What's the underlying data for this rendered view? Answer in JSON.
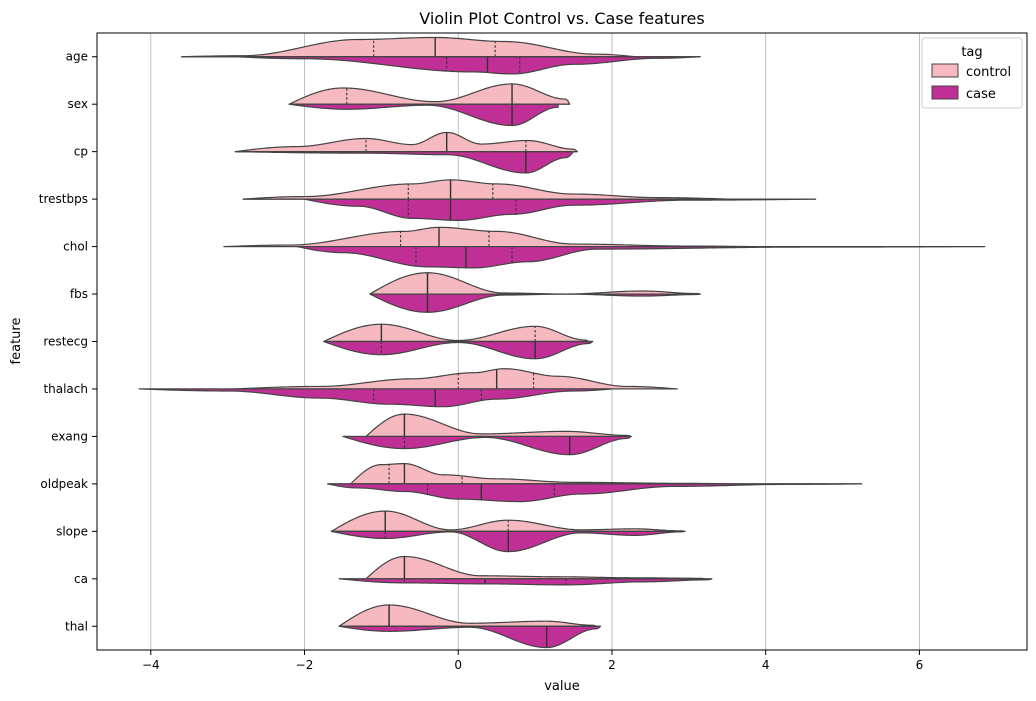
{
  "chart_data": {
    "type": "violin",
    "orientation": "horizontal",
    "split": true,
    "title": "Violin Plot Control vs. Case features",
    "xlabel": "value",
    "ylabel": "feature",
    "xlim": [
      -4.7,
      7.4
    ],
    "xticks": [
      -4,
      -2,
      0,
      2,
      4,
      6
    ],
    "xtick_labels": [
      "−4",
      "−2",
      "0",
      "2",
      "4",
      "6"
    ],
    "grid": "vertical",
    "legend": {
      "title": "tag",
      "placement": "top-right",
      "entries": [
        {
          "label": "control",
          "color": "#f5b9bf"
        },
        {
          "label": "case",
          "color": "#c02f95"
        }
      ]
    },
    "features": [
      {
        "name": "age",
        "control": {
          "range": [
            -3.6,
            2.3
          ],
          "quartiles": [
            -1.1,
            -0.3,
            0.48
          ],
          "peaks": [
            [
              -2.8,
              0.02
            ],
            [
              -1.3,
              0.34
            ],
            [
              -0.3,
              0.38
            ],
            [
              0.6,
              0.3
            ],
            [
              1.8,
              0.05
            ]
          ]
        },
        "case": {
          "range": [
            -2.9,
            3.15
          ],
          "quartiles": [
            -0.15,
            0.38,
            0.8
          ],
          "peaks": [
            [
              -2.0,
              0.04
            ],
            [
              0.2,
              0.3
            ],
            [
              0.7,
              0.34
            ],
            [
              1.5,
              0.15
            ],
            [
              2.6,
              0.03
            ]
          ]
        }
      },
      {
        "name": "sex",
        "control": {
          "range": [
            -2.2,
            1.45
          ],
          "quartiles": [
            -1.45,
            0.7,
            0.7
          ],
          "peaks": [
            [
              -1.5,
              0.32
            ],
            [
              -0.3,
              0.05
            ],
            [
              0.7,
              0.4
            ],
            [
              1.4,
              0.1
            ]
          ]
        },
        "case": {
          "range": [
            -2.2,
            1.3
          ],
          "quartiles": [
            0.7,
            0.7,
            0.7
          ],
          "peaks": [
            [
              -1.45,
              0.1
            ],
            [
              -0.4,
              0.02
            ],
            [
              0.7,
              0.42
            ],
            [
              1.3,
              0.06
            ]
          ]
        }
      },
      {
        "name": "cp",
        "control": {
          "range": [
            -2.9,
            1.55
          ],
          "quartiles": [
            -1.2,
            -0.15,
            0.88
          ],
          "peaks": [
            [
              -2.1,
              0.1
            ],
            [
              -1.2,
              0.26
            ],
            [
              -0.6,
              0.14
            ],
            [
              -0.15,
              0.38
            ],
            [
              0.3,
              0.15
            ],
            [
              0.9,
              0.22
            ],
            [
              1.5,
              0.05
            ]
          ]
        },
        "case": {
          "range": [
            -2.9,
            1.5
          ],
          "quartiles": [
            0.88,
            0.88,
            0.88
          ],
          "peaks": [
            [
              -1.2,
              0.03
            ],
            [
              -0.15,
              0.06
            ],
            [
              0.88,
              0.42
            ],
            [
              1.4,
              0.12
            ]
          ]
        }
      },
      {
        "name": "trestbps",
        "control": {
          "range": [
            -2.8,
            3.5
          ],
          "quartiles": [
            -0.65,
            -0.1,
            0.45
          ],
          "peaks": [
            [
              -2.0,
              0.05
            ],
            [
              -0.6,
              0.3
            ],
            [
              -0.1,
              0.38
            ],
            [
              0.5,
              0.3
            ],
            [
              1.5,
              0.1
            ],
            [
              2.6,
              0.03
            ]
          ]
        },
        "case": {
          "range": [
            -2.0,
            4.65
          ],
          "quartiles": [
            -0.65,
            -0.1,
            0.75
          ],
          "peaks": [
            [
              -1.3,
              0.14
            ],
            [
              -0.6,
              0.38
            ],
            [
              0.0,
              0.42
            ],
            [
              0.7,
              0.3
            ],
            [
              1.5,
              0.12
            ],
            [
              3.0,
              0.02
            ]
          ]
        }
      },
      {
        "name": "chol",
        "control": {
          "range": [
            -3.05,
            3.8
          ],
          "quartiles": [
            -0.75,
            -0.25,
            0.4
          ],
          "peaks": [
            [
              -2.2,
              0.03
            ],
            [
              -0.7,
              0.3
            ],
            [
              -0.25,
              0.38
            ],
            [
              0.5,
              0.3
            ],
            [
              1.5,
              0.05
            ],
            [
              3.0,
              0.01
            ]
          ]
        },
        "case": {
          "range": [
            -2.1,
            6.85
          ],
          "quartiles": [
            -0.55,
            0.1,
            0.7
          ],
          "peaks": [
            [
              -1.5,
              0.12
            ],
            [
              -0.4,
              0.4
            ],
            [
              0.2,
              0.42
            ],
            [
              0.9,
              0.3
            ],
            [
              1.8,
              0.05
            ],
            [
              4.5,
              0.01
            ]
          ]
        }
      },
      {
        "name": "fbs",
        "control": {
          "range": [
            -1.15,
            3.15
          ],
          "quartiles": [
            -0.4,
            -0.4,
            -0.4
          ],
          "peaks": [
            [
              -0.4,
              0.42
            ],
            [
              0.6,
              0.02
            ],
            [
              1.4,
              0.0
            ],
            [
              2.4,
              0.06
            ],
            [
              3.1,
              0.01
            ]
          ]
        },
        "case": {
          "range": [
            -1.15,
            3.15
          ],
          "quartiles": [
            -0.4,
            -0.4,
            -0.4
          ],
          "peaks": [
            [
              -0.4,
              0.36
            ],
            [
              0.6,
              0.02
            ],
            [
              1.4,
              0.0
            ],
            [
              2.4,
              0.04
            ],
            [
              3.1,
              0.01
            ]
          ]
        }
      },
      {
        "name": "restecg",
        "control": {
          "range": [
            -1.75,
            1.7
          ],
          "quartiles": [
            -1.0,
            -1.0,
            1.0
          ],
          "peaks": [
            [
              -1.0,
              0.34
            ],
            [
              0.0,
              0.02
            ],
            [
              1.0,
              0.3
            ],
            [
              1.65,
              0.03
            ]
          ]
        },
        "case": {
          "range": [
            -1.75,
            1.75
          ],
          "quartiles": [
            -1.0,
            1.0,
            1.0
          ],
          "peaks": [
            [
              -1.0,
              0.26
            ],
            [
              0.0,
              0.02
            ],
            [
              1.0,
              0.34
            ],
            [
              1.7,
              0.04
            ]
          ]
        }
      },
      {
        "name": "thalach",
        "control": {
          "range": [
            -2.9,
            2.85
          ],
          "quartiles": [
            0.0,
            0.5,
            0.98
          ],
          "peaks": [
            [
              -1.8,
              0.05
            ],
            [
              -0.6,
              0.2
            ],
            [
              0.2,
              0.32
            ],
            [
              0.6,
              0.4
            ],
            [
              1.3,
              0.25
            ],
            [
              2.2,
              0.05
            ]
          ]
        },
        "case": {
          "range": [
            -4.15,
            2.0
          ],
          "quartiles": [
            -1.1,
            -0.3,
            0.3
          ],
          "peaks": [
            [
              -3.0,
              0.04
            ],
            [
              -1.8,
              0.18
            ],
            [
              -0.9,
              0.3
            ],
            [
              -0.2,
              0.35
            ],
            [
              0.5,
              0.2
            ],
            [
              1.5,
              0.04
            ]
          ]
        }
      },
      {
        "name": "exang",
        "control": {
          "range": [
            -1.2,
            2.25
          ],
          "quartiles": [
            -0.7,
            -0.7,
            -0.7
          ],
          "peaks": [
            [
              -0.7,
              0.44
            ],
            [
              0.3,
              0.05
            ],
            [
              1.4,
              0.1
            ],
            [
              2.2,
              0.02
            ]
          ]
        },
        "case": {
          "range": [
            -1.5,
            2.25
          ],
          "quartiles": [
            -0.7,
            1.45,
            1.45
          ],
          "peaks": [
            [
              -0.7,
              0.24
            ],
            [
              0.35,
              0.02
            ],
            [
              1.45,
              0.36
            ],
            [
              2.2,
              0.04
            ]
          ]
        }
      },
      {
        "name": "oldpeak",
        "control": {
          "range": [
            -1.4,
            3.5
          ],
          "quartiles": [
            -0.9,
            -0.7,
            0.05
          ],
          "peaks": [
            [
              -1.0,
              0.38
            ],
            [
              -0.7,
              0.4
            ],
            [
              -0.2,
              0.18
            ],
            [
              0.5,
              0.1
            ],
            [
              1.5,
              0.03
            ],
            [
              3.0,
              0.01
            ]
          ]
        },
        "case": {
          "range": [
            -1.7,
            5.25
          ],
          "quartiles": [
            -0.4,
            0.3,
            1.25
          ],
          "peaks": [
            [
              -1.3,
              0.08
            ],
            [
              -0.7,
              0.15
            ],
            [
              0.0,
              0.3
            ],
            [
              0.8,
              0.35
            ],
            [
              1.6,
              0.2
            ],
            [
              2.8,
              0.05
            ],
            [
              4.3,
              0.01
            ]
          ]
        }
      },
      {
        "name": "slope",
        "control": {
          "range": [
            -1.65,
            2.95
          ],
          "quartiles": [
            -0.95,
            -0.95,
            0.65
          ],
          "peaks": [
            [
              -0.95,
              0.4
            ],
            [
              -0.1,
              0.03
            ],
            [
              0.65,
              0.22
            ],
            [
              1.6,
              0.03
            ],
            [
              2.3,
              0.05
            ],
            [
              2.9,
              0.01
            ]
          ]
        },
        "case": {
          "range": [
            -1.65,
            2.95
          ],
          "quartiles": [
            -0.95,
            0.65,
            0.65
          ],
          "peaks": [
            [
              -0.95,
              0.14
            ],
            [
              -0.1,
              0.01
            ],
            [
              0.65,
              0.4
            ],
            [
              1.6,
              0.03
            ],
            [
              2.3,
              0.08
            ],
            [
              2.9,
              0.01
            ]
          ]
        }
      },
      {
        "name": "ca",
        "control": {
          "range": [
            -1.2,
            3.2
          ],
          "quartiles": [
            -0.7,
            -0.7,
            -0.7
          ],
          "peaks": [
            [
              -0.7,
              0.44
            ],
            [
              0.3,
              0.06
            ],
            [
              1.3,
              0.04
            ],
            [
              2.3,
              0.02
            ],
            [
              3.15,
              0.01
            ]
          ]
        },
        "case": {
          "range": [
            -1.55,
            3.3
          ],
          "quartiles": [
            -0.7,
            0.35,
            1.4
          ],
          "peaks": [
            [
              -0.7,
              0.08
            ],
            [
              0.35,
              0.1
            ],
            [
              1.4,
              0.12
            ],
            [
              2.4,
              0.06
            ],
            [
              3.25,
              0.02
            ]
          ]
        }
      },
      {
        "name": "thal",
        "control": {
          "range": [
            -1.55,
            1.8
          ],
          "quartiles": [
            -0.9,
            -0.9,
            -0.9
          ],
          "peaks": [
            [
              -0.9,
              0.42
            ],
            [
              0.15,
              0.06
            ],
            [
              1.15,
              0.1
            ],
            [
              1.75,
              0.02
            ]
          ]
        },
        "case": {
          "range": [
            -1.55,
            1.85
          ],
          "quartiles": [
            1.15,
            1.15,
            1.15
          ],
          "peaks": [
            [
              -0.9,
              0.1
            ],
            [
              0.15,
              0.02
            ],
            [
              1.15,
              0.42
            ],
            [
              1.8,
              0.05
            ]
          ]
        }
      }
    ]
  }
}
